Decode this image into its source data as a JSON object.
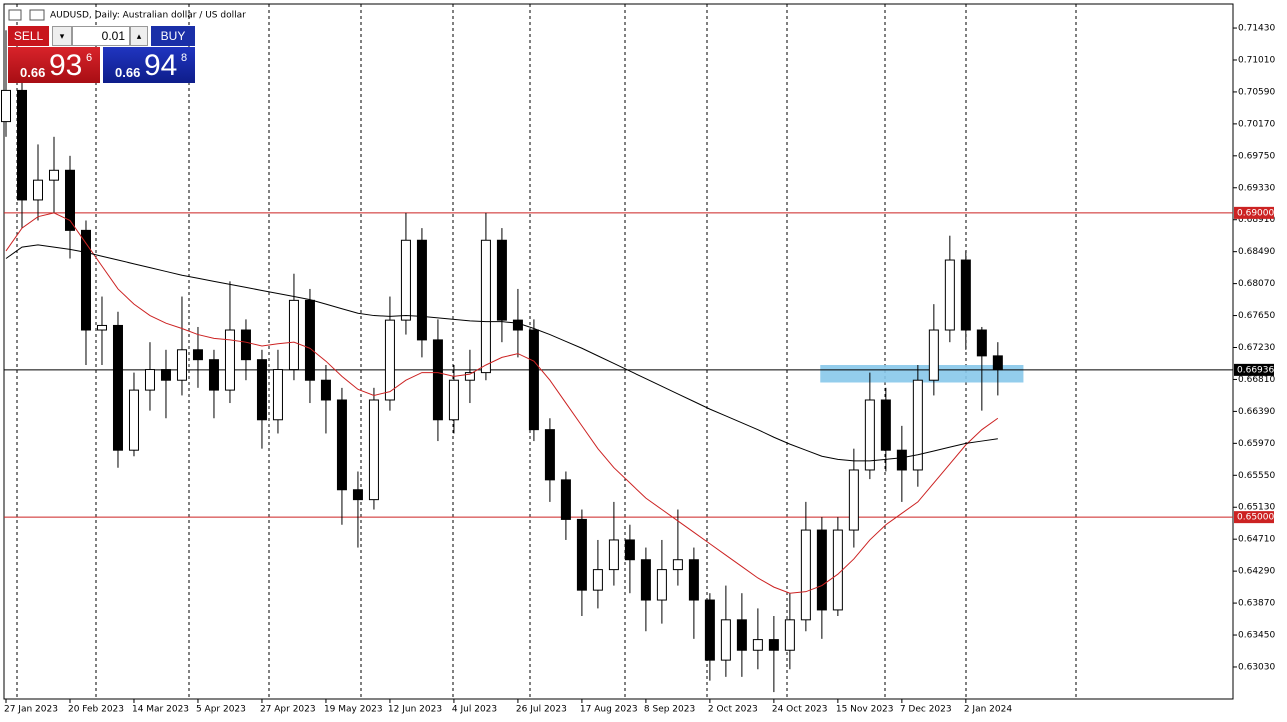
{
  "header": {
    "title": "AUDUSD, Daily: Australian dollar / US dollar"
  },
  "trade_panel": {
    "sell": "SELL",
    "buy": "BUY",
    "lot": "0.01",
    "sell_price": {
      "big": "0.66",
      "main": "93",
      "small": "6"
    },
    "buy_price": {
      "big": "0.66",
      "main": "94",
      "small": "8"
    }
  },
  "chart_data": {
    "type": "candlestick",
    "xlim": [
      -0.125,
      76.7
    ],
    "xticks": [
      {
        "value": 0,
        "label": "27 Jan 2023"
      },
      {
        "value": 4,
        "label": "20 Feb 2023"
      },
      {
        "value": 8,
        "label": "14 Mar 2023"
      },
      {
        "value": 12,
        "label": "5 Apr 2023"
      },
      {
        "value": 16,
        "label": "27 Apr 2023"
      },
      {
        "value": 20,
        "label": "19 May 2023"
      },
      {
        "value": 24,
        "label": "12 Jun 2023"
      },
      {
        "value": 28,
        "label": "4 Jul 2023"
      },
      {
        "value": 32,
        "label": "26 Jul 2023"
      },
      {
        "value": 36,
        "label": "17 Aug 2023"
      },
      {
        "value": 40,
        "label": "8 Sep 2023"
      },
      {
        "value": 44,
        "label": "2 Oct 2023"
      },
      {
        "value": 48,
        "label": "24 Oct 2023"
      },
      {
        "value": 52,
        "label": "15 Nov 2023"
      },
      {
        "value": 56,
        "label": "7 Dec 2023"
      },
      {
        "value": 60,
        "label": "2 Jan 2024"
      }
    ],
    "ylim": [
      0.62609,
      0.71746
    ],
    "yticks": [
      {
        "value": 0.7143,
        "label": "0.71430"
      },
      {
        "value": 0.7101,
        "label": "0.71010"
      },
      {
        "value": 0.7059,
        "label": "0.70590"
      },
      {
        "value": 0.7017,
        "label": "0.70170"
      },
      {
        "value": 0.6975,
        "label": "0.69750"
      },
      {
        "value": 0.6933,
        "label": "0.69330"
      },
      {
        "value": 0.6891,
        "label": "0.68910"
      },
      {
        "value": 0.6849,
        "label": "0.68490"
      },
      {
        "value": 0.6807,
        "label": "0.68070"
      },
      {
        "value": 0.6765,
        "label": "0.67650"
      },
      {
        "value": 0.6723,
        "label": "0.67230"
      },
      {
        "value": 0.6681,
        "label": "0.66810"
      },
      {
        "value": 0.6639,
        "label": "0.66390"
      },
      {
        "value": 0.6597,
        "label": "0.65970"
      },
      {
        "value": 0.6555,
        "label": "0.65550"
      },
      {
        "value": 0.6513,
        "label": "0.65130"
      },
      {
        "value": 0.6471,
        "label": "0.64710"
      },
      {
        "value": 0.6429,
        "label": "0.64290"
      },
      {
        "value": 0.6387,
        "label": "0.63870"
      },
      {
        "value": 0.6345,
        "label": "0.63450"
      },
      {
        "value": 0.6303,
        "label": "0.63030"
      }
    ],
    "candles": {
      "open": [
        0.702,
        0.7061,
        0.6917,
        0.6943,
        0.6956,
        0.6877,
        0.6746,
        0.6752,
        0.6588,
        0.6667,
        0.6694,
        0.668,
        0.672,
        0.6707,
        0.6667,
        0.6746,
        0.6707,
        0.6628,
        0.6694,
        0.6785,
        0.668,
        0.6654,
        0.6536,
        0.6523,
        0.6654,
        0.6759,
        0.6864,
        0.6733,
        0.6628,
        0.668,
        0.669,
        0.6864,
        0.6759,
        0.6746,
        0.6615,
        0.6549,
        0.6497,
        0.6404,
        0.6431,
        0.647,
        0.6444,
        0.6391,
        0.6431,
        0.6444,
        0.6391,
        0.6312,
        0.6365,
        0.6325,
        0.6339,
        0.6325,
        0.6365,
        0.6483,
        0.6378,
        0.6483,
        0.6562,
        0.6654,
        0.6588,
        0.6562,
        0.668,
        0.6746,
        0.6838,
        0.6746,
        0.6712
      ],
      "high": [
        0.714,
        0.708,
        0.699,
        0.7,
        0.6975,
        0.689,
        0.679,
        0.677,
        0.669,
        0.673,
        0.672,
        0.679,
        0.675,
        0.672,
        0.681,
        0.676,
        0.672,
        0.672,
        0.682,
        0.68,
        0.67,
        0.667,
        0.656,
        0.667,
        0.679,
        0.69,
        0.688,
        0.676,
        0.67,
        0.672,
        0.69,
        0.688,
        0.68,
        0.676,
        0.663,
        0.656,
        0.651,
        0.647,
        0.652,
        0.649,
        0.646,
        0.647,
        0.651,
        0.646,
        0.64,
        0.641,
        0.64,
        0.638,
        0.637,
        0.64,
        0.652,
        0.65,
        0.65,
        0.659,
        0.669,
        0.667,
        0.662,
        0.67,
        0.678,
        0.687,
        0.685,
        0.675,
        0.673
      ],
      "low": [
        0.7,
        0.688,
        0.689,
        0.69,
        0.684,
        0.67,
        0.67,
        0.6565,
        0.658,
        0.664,
        0.663,
        0.666,
        0.667,
        0.663,
        0.665,
        0.668,
        0.659,
        0.661,
        0.668,
        0.665,
        0.661,
        0.649,
        0.646,
        0.651,
        0.664,
        0.674,
        0.671,
        0.66,
        0.661,
        0.665,
        0.668,
        0.673,
        0.671,
        0.66,
        0.652,
        0.647,
        0.637,
        0.638,
        0.641,
        0.64,
        0.635,
        0.636,
        0.641,
        0.634,
        0.6285,
        0.629,
        0.629,
        0.63,
        0.627,
        0.63,
        0.635,
        0.634,
        0.637,
        0.646,
        0.655,
        0.656,
        0.652,
        0.654,
        0.666,
        0.673,
        0.672,
        0.664,
        0.666
      ],
      "close": [
        0.7061,
        0.6917,
        0.6943,
        0.6956,
        0.6877,
        0.6746,
        0.6752,
        0.6588,
        0.6667,
        0.6694,
        0.668,
        0.672,
        0.6707,
        0.6667,
        0.6746,
        0.6707,
        0.6628,
        0.6694,
        0.6785,
        0.668,
        0.6654,
        0.6536,
        0.6523,
        0.6654,
        0.6759,
        0.6864,
        0.6733,
        0.6628,
        0.668,
        0.669,
        0.6864,
        0.6759,
        0.6746,
        0.6615,
        0.6549,
        0.6497,
        0.6404,
        0.6431,
        0.647,
        0.6444,
        0.6391,
        0.6431,
        0.6444,
        0.6391,
        0.6312,
        0.6365,
        0.6325,
        0.6339,
        0.6325,
        0.6365,
        0.6483,
        0.6378,
        0.6483,
        0.6562,
        0.6654,
        0.6588,
        0.6562,
        0.668,
        0.6746,
        0.6838,
        0.6746,
        0.6712,
        0.6694
      ],
      "up_color": "#ffffff",
      "down_color": "#000000",
      "outline": "#000000"
    },
    "lines": [
      {
        "color": "#cc2222",
        "values": [
          0.685,
          0.688,
          0.6895,
          0.69,
          0.689,
          0.686,
          0.683,
          0.68,
          0.678,
          0.6765,
          0.6755,
          0.6748,
          0.674,
          0.6735,
          0.6733,
          0.673,
          0.6725,
          0.6728,
          0.673,
          0.6722,
          0.6705,
          0.6685,
          0.6668,
          0.666,
          0.6665,
          0.668,
          0.669,
          0.669,
          0.6685,
          0.6688,
          0.67,
          0.671,
          0.6715,
          0.6705,
          0.668,
          0.665,
          0.662,
          0.659,
          0.6565,
          0.6545,
          0.6525,
          0.651,
          0.6495,
          0.648,
          0.6465,
          0.645,
          0.6435,
          0.642,
          0.6408,
          0.64,
          0.6402,
          0.641,
          0.6425,
          0.6445,
          0.647,
          0.649,
          0.6505,
          0.652,
          0.6545,
          0.657,
          0.6595,
          0.6615,
          0.663
        ]
      },
      {
        "color": "#000000",
        "values": [
          0.684,
          0.6855,
          0.6858,
          0.6855,
          0.6852,
          0.6848,
          0.6843,
          0.6838,
          0.6833,
          0.6828,
          0.6823,
          0.6818,
          0.6814,
          0.681,
          0.6806,
          0.6802,
          0.6798,
          0.6794,
          0.679,
          0.6786,
          0.678,
          0.6774,
          0.6768,
          0.6765,
          0.6764,
          0.6765,
          0.6764,
          0.6762,
          0.676,
          0.6758,
          0.6757,
          0.6757,
          0.6755,
          0.6748,
          0.674,
          0.6731,
          0.6722,
          0.6712,
          0.6702,
          0.6692,
          0.6682,
          0.6672,
          0.6662,
          0.6652,
          0.6642,
          0.6633,
          0.6624,
          0.6615,
          0.6605,
          0.6596,
          0.6588,
          0.658,
          0.6576,
          0.6574,
          0.6574,
          0.6576,
          0.6578,
          0.6582,
          0.6587,
          0.6592,
          0.6597,
          0.66,
          0.6603
        ]
      }
    ],
    "hlines": [
      {
        "value": 0.69,
        "label": "0.69000",
        "color": "#cc2222"
      },
      {
        "value": 0.65,
        "label": "0.65000",
        "color": "#cc2222"
      },
      {
        "value": 0.66936,
        "label": "0.66936",
        "color": "#000000"
      }
    ],
    "zone": {
      "x": [
        50.9,
        63.6
      ],
      "y": [
        0.6677,
        0.67
      ],
      "color": "#87c8ea"
    }
  }
}
